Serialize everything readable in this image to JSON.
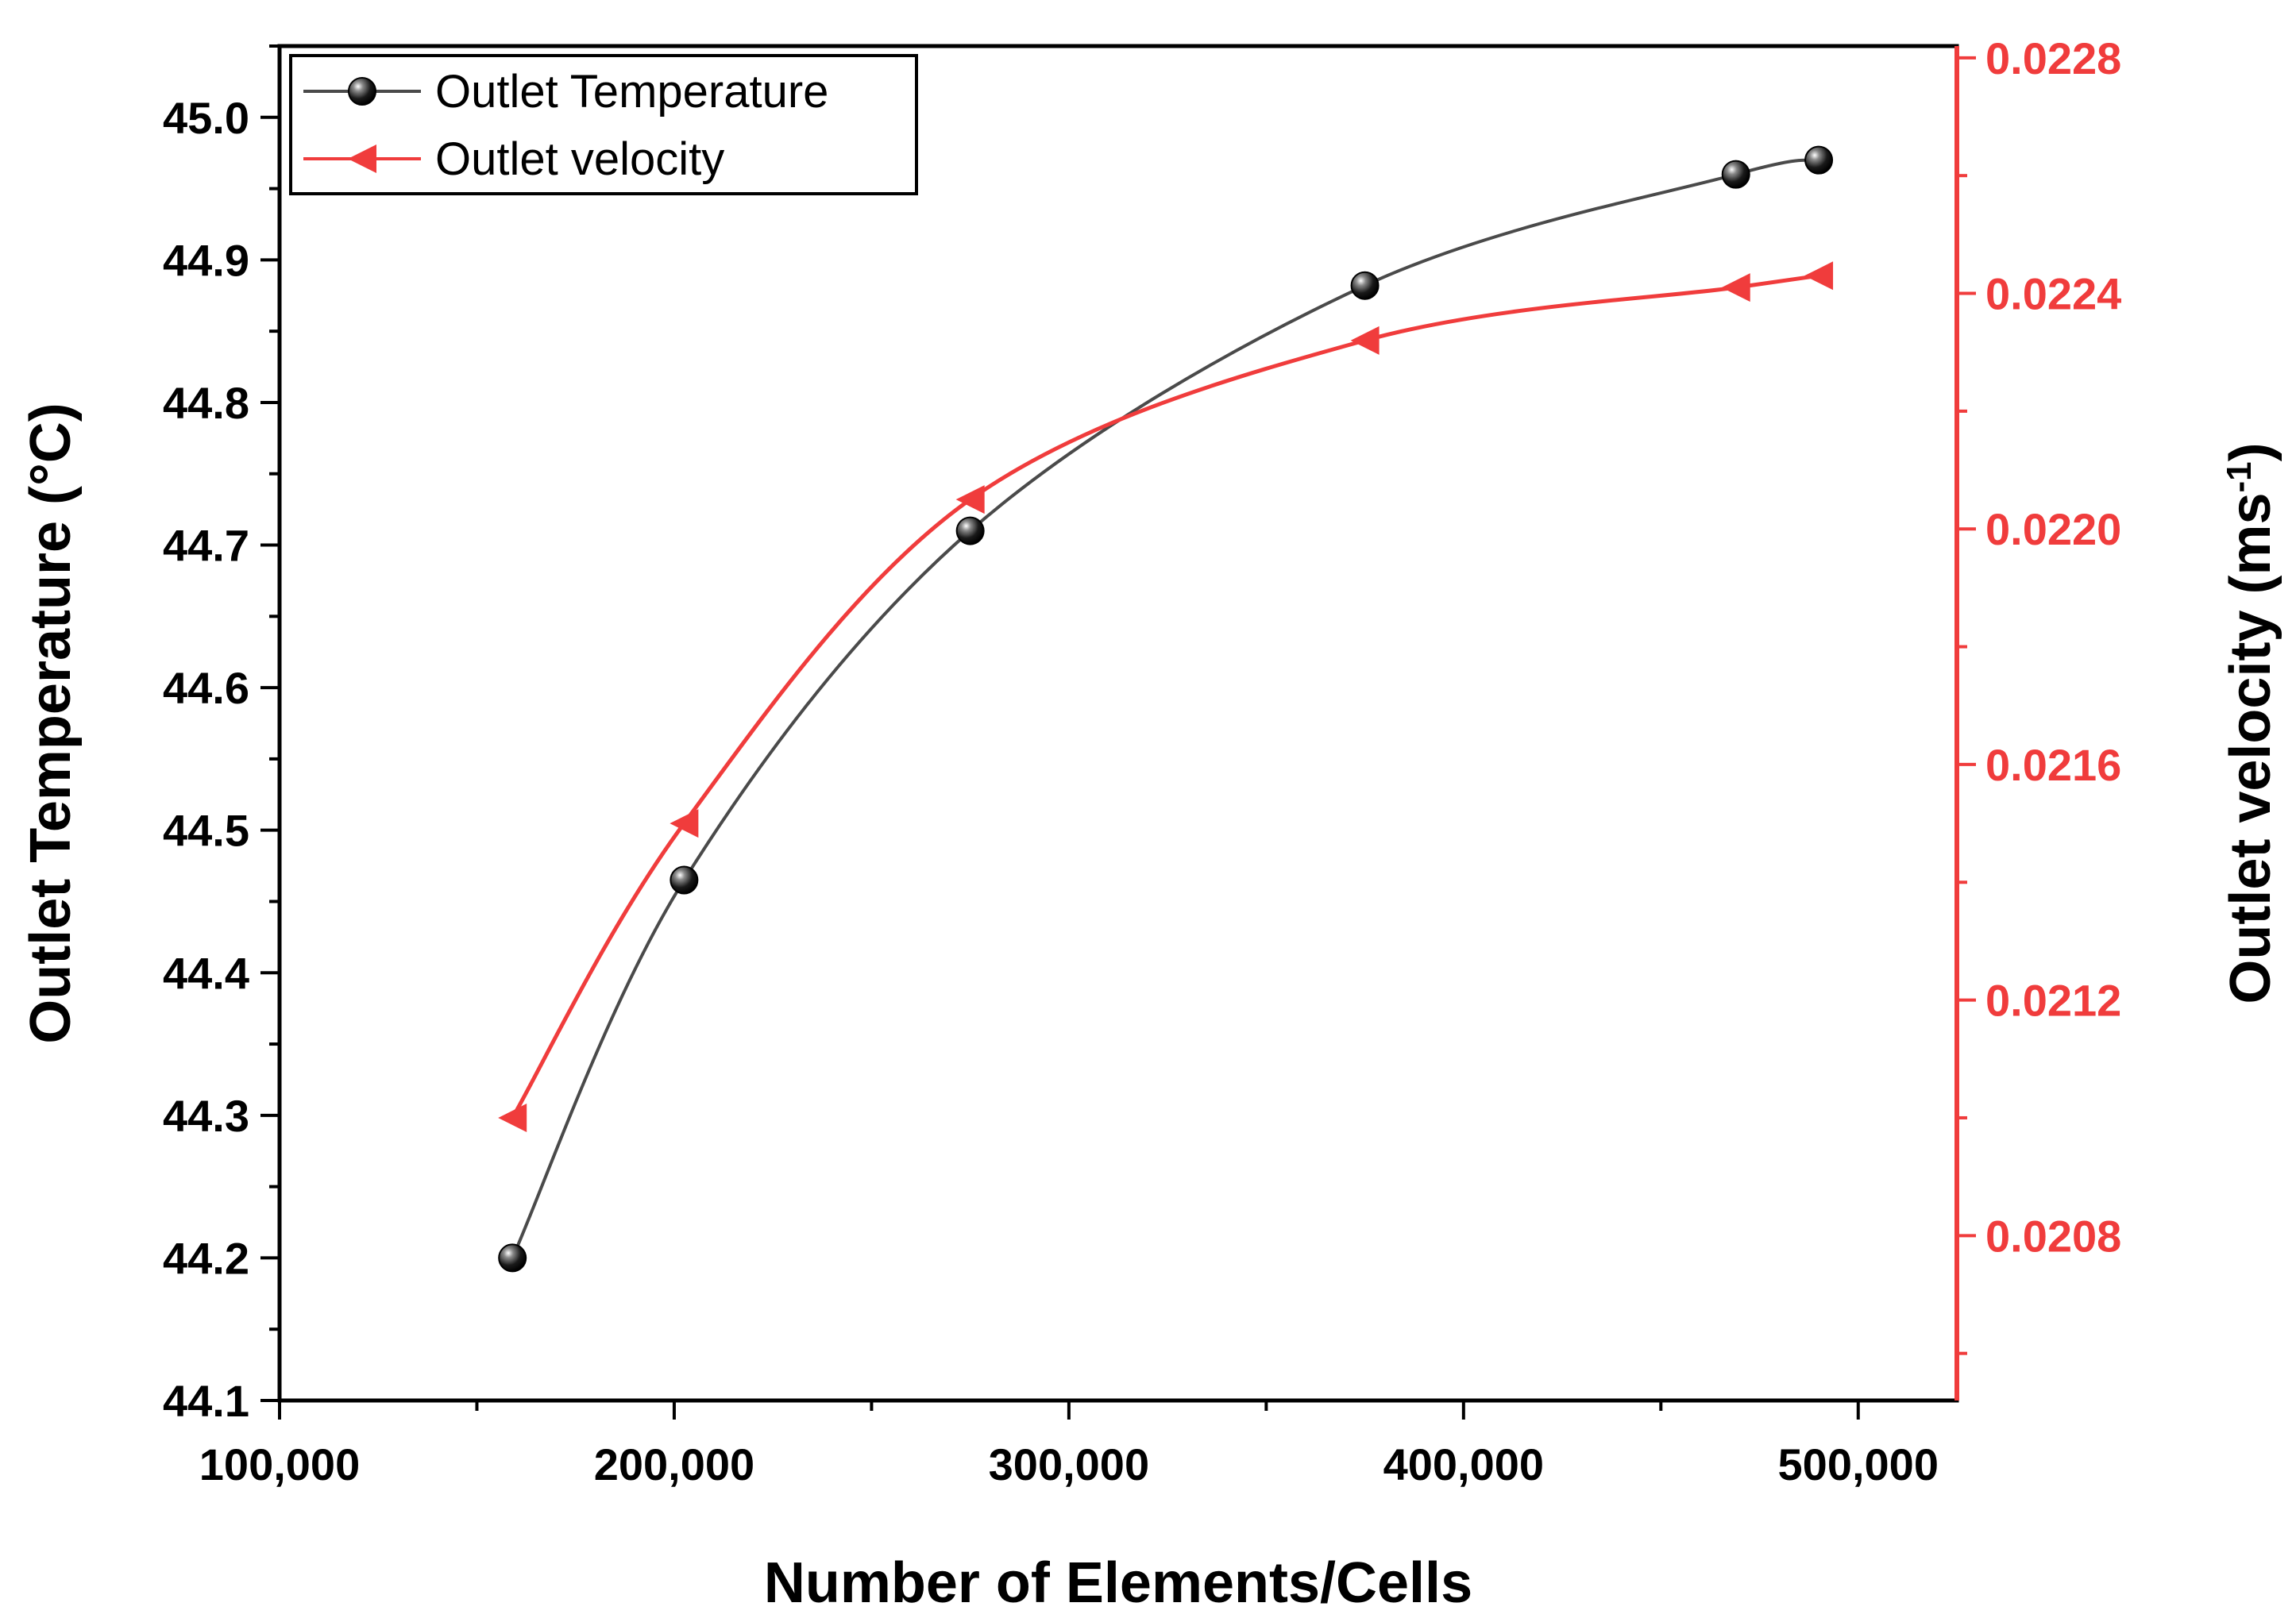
{
  "chart_data": {
    "type": "line",
    "xlabel": "Number of Elements/Cells",
    "ylabel": "Outlet Temperature (°C)",
    "y2label_main": "Outlet velocity (ms",
    "y2label_sup": "-1",
    "y2label_close": ")",
    "xlim": [
      100000,
      525000
    ],
    "ylim": [
      44.1,
      45.05
    ],
    "y2lim": [
      0.02052,
      0.02282
    ],
    "x_ticks": [
      100000,
      200000,
      300000,
      400000,
      500000
    ],
    "x_tick_labels": [
      "100,000",
      "200,000",
      "300,000",
      "400,000",
      "500,000"
    ],
    "y_ticks": [
      44.1,
      44.2,
      44.3,
      44.4,
      44.5,
      44.6,
      44.7,
      44.8,
      44.9,
      45.0
    ],
    "y_tick_labels": [
      "44.1",
      "44.2",
      "44.3",
      "44.4",
      "44.5",
      "44.6",
      "44.7",
      "44.8",
      "44.9",
      "45.0"
    ],
    "y2_ticks": [
      0.0208,
      0.0212,
      0.0216,
      0.022,
      0.0224,
      0.0228
    ],
    "y2_tick_labels": [
      "0.0208",
      "0.0212",
      "0.0216",
      "0.0220",
      "0.0224",
      "0.0228"
    ],
    "legend_position": "top-left",
    "series": [
      {
        "name": "Outlet Temperature",
        "axis": "left",
        "color": "#4a4a4a",
        "marker": "circle",
        "x": [
          159000,
          202500,
          275000,
          375000,
          469000,
          490000
        ],
        "y": [
          44.2,
          44.465,
          44.71,
          44.882,
          44.96,
          44.97
        ]
      },
      {
        "name": "Outlet velocity",
        "axis": "right",
        "color": "#f03c3c",
        "marker": "triangle-left",
        "x": [
          159000,
          202500,
          275000,
          375000,
          469000,
          490000
        ],
        "y": [
          0.021,
          0.0215,
          0.02205,
          0.02232,
          0.02241,
          0.02243
        ]
      }
    ]
  },
  "colors": {
    "axis": "#000000",
    "right_axis": "#f03c3c",
    "temperature_line": "#4a4a4a",
    "velocity_line": "#f03c3c"
  }
}
